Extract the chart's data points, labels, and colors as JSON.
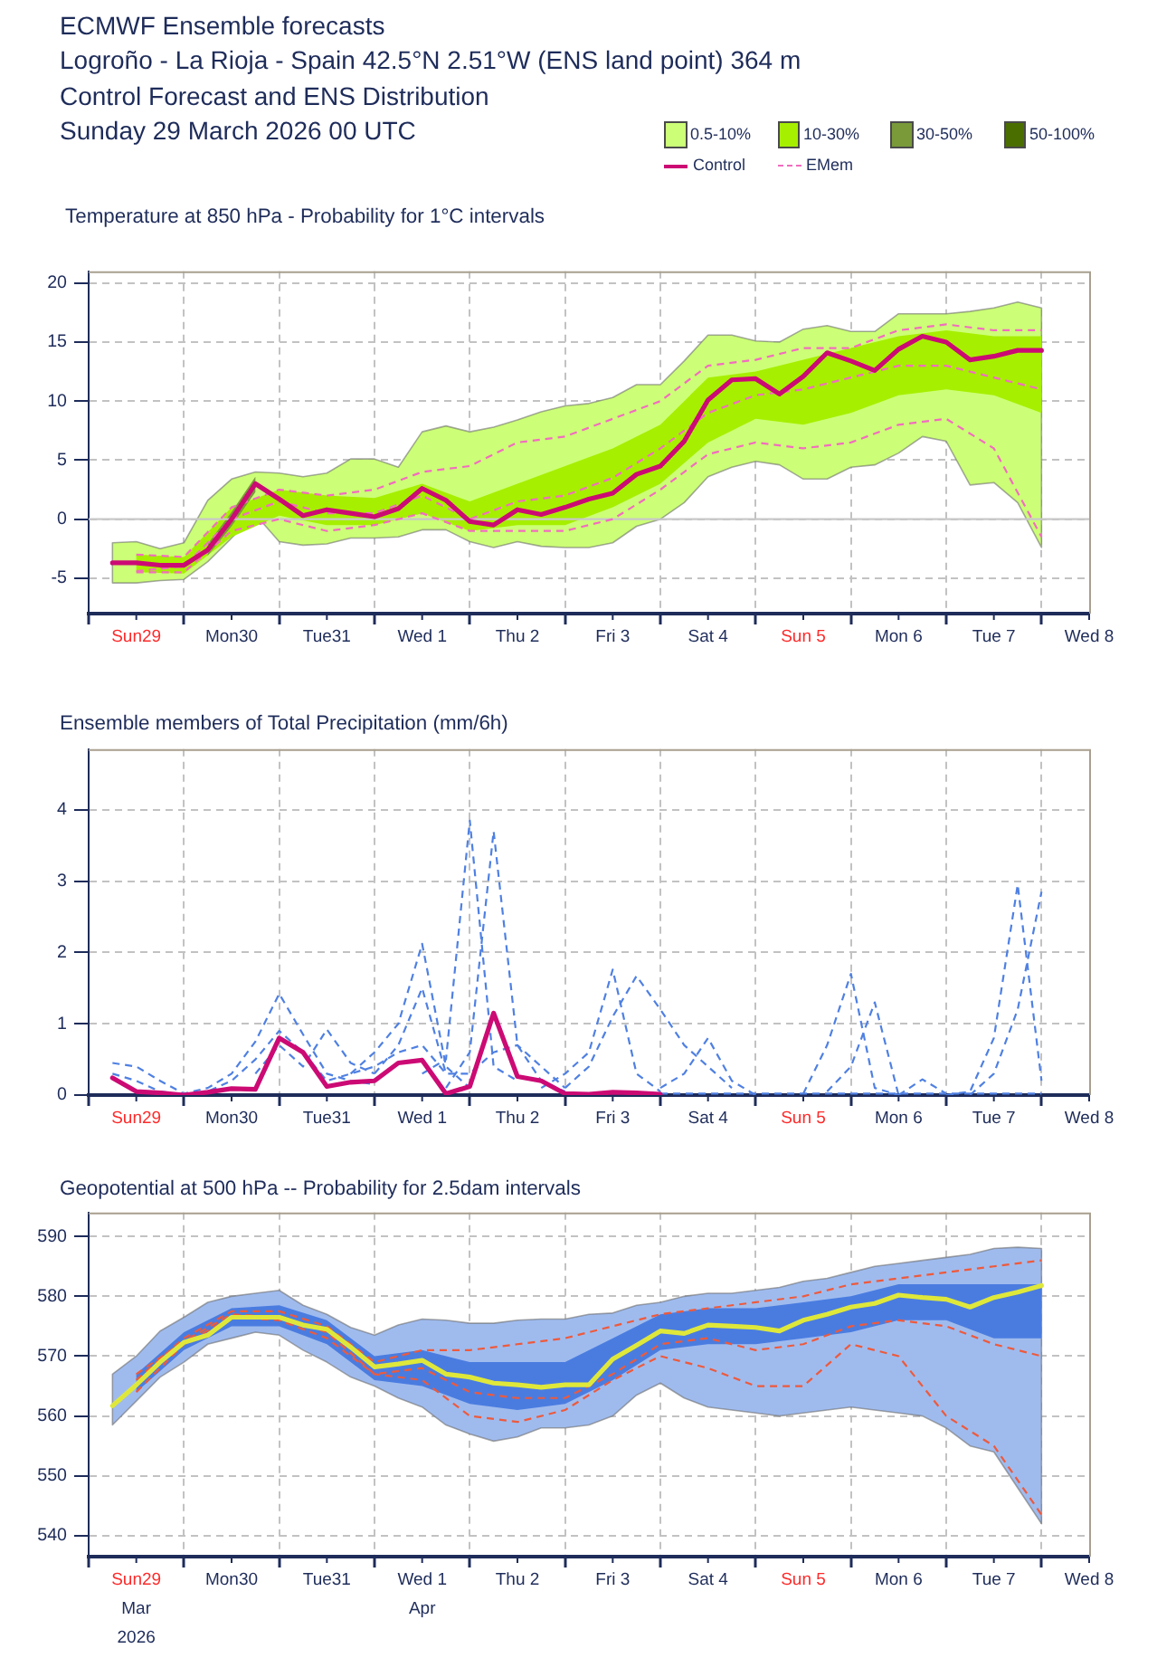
{
  "chart_data": [
    {
      "type": "line",
      "title": "Temperature at 850 hPa - Probability for 1°C intervals",
      "annotations": [
        "ECMWF Ensemble forecasts",
        "Logroño - La Rioja - Spain 42.5°N 2.51°W (ENS land point) 364 m",
        "Control Forecast and ENS Distribution",
        "Sunday 29 March 2026 00 UTC"
      ],
      "x": [
        "2026-03-29T06:00",
        "2026-03-29T12:00",
        "2026-03-29T18:00",
        "2026-03-30T00:00",
        "2026-03-30T06:00",
        "2026-03-30T12:00",
        "2026-03-30T18:00",
        "2026-03-31T00:00",
        "2026-03-31T06:00",
        "2026-03-31T12:00",
        "2026-03-31T18:00",
        "2026-04-01T00:00",
        "2026-04-01T06:00",
        "2026-04-01T12:00",
        "2026-04-01T18:00",
        "2026-04-02T00:00",
        "2026-04-02T06:00",
        "2026-04-02T12:00",
        "2026-04-02T18:00",
        "2026-04-03T00:00",
        "2026-04-03T06:00",
        "2026-04-03T12:00",
        "2026-04-03T18:00",
        "2026-04-04T00:00",
        "2026-04-04T06:00",
        "2026-04-04T12:00",
        "2026-04-04T18:00",
        "2026-04-05T00:00",
        "2026-04-05T06:00",
        "2026-04-05T12:00",
        "2026-04-05T18:00",
        "2026-04-06T00:00",
        "2026-04-06T06:00",
        "2026-04-06T12:00",
        "2026-04-06T18:00",
        "2026-04-07T00:00",
        "2026-04-07T06:00",
        "2026-04-07T12:00",
        "2026-04-07T18:00",
        "2026-04-08T00:00"
      ],
      "xlim": [
        "2026-03-29T00:00",
        "2026-04-08T12:00"
      ],
      "xticks": [
        {
          "value": "2026-03-29T00:00",
          "label": null
        },
        {
          "value": "2026-03-29T12:00",
          "label": "Sun29"
        },
        {
          "value": "2026-03-30T00:00",
          "label": null
        },
        {
          "value": "2026-03-30T12:00",
          "label": "Mon30"
        },
        {
          "value": "2026-03-31T00:00",
          "label": null
        },
        {
          "value": "2026-03-31T12:00",
          "label": "Tue31"
        },
        {
          "value": "2026-04-01T00:00",
          "label": null
        },
        {
          "value": "2026-04-01T12:00",
          "label": "Wed 1"
        },
        {
          "value": "2026-04-02T00:00",
          "label": null
        },
        {
          "value": "2026-04-02T12:00",
          "label": "Thu 2"
        },
        {
          "value": "2026-04-03T00:00",
          "label": null
        },
        {
          "value": "2026-04-03T12:00",
          "label": "Fri 3"
        },
        {
          "value": "2026-04-04T00:00",
          "label": null
        },
        {
          "value": "2026-04-04T12:00",
          "label": "Sat 4"
        },
        {
          "value": "2026-04-05T00:00",
          "label": null
        },
        {
          "value": "2026-04-05T12:00",
          "label": "Sun 5"
        },
        {
          "value": "2026-04-06T00:00",
          "label": null
        },
        {
          "value": "2026-04-06T12:00",
          "label": "Mon 6"
        },
        {
          "value": "2026-04-07T00:00",
          "label": null
        },
        {
          "value": "2026-04-07T12:00",
          "label": "Tue 7"
        },
        {
          "value": "2026-04-08T00:00",
          "label": null
        },
        {
          "value": "2026-04-08T12:00",
          "label": "Wed 8"
        }
      ],
      "ylim": [
        -8,
        21
      ],
      "yticks": [
        -5,
        0,
        5,
        10,
        15,
        20
      ],
      "grid": true,
      "legend": "top right",
      "ref_lines": [
        {
          "axis": "y",
          "value": 0,
          "color": "#c8c8c8"
        }
      ],
      "series": [
        {
          "name": "0.5-10%",
          "type": "area",
          "color": "#ccff77",
          "values": [
            null,
            null,
            null,
            null,
            null,
            null,
            null,
            null,
            null,
            null,
            null,
            null,
            null,
            null,
            null,
            null,
            null,
            null,
            null,
            null,
            null,
            null,
            null,
            null,
            null,
            null,
            null,
            null,
            null,
            null,
            null,
            null,
            null,
            null,
            null,
            null,
            null,
            null,
            null,
            null
          ],
          "lower": [
            -5.4,
            -5.4,
            -5.2,
            -5.1,
            -3.6,
            -1.6,
            0.4,
            -1.9,
            -2.2,
            -2.1,
            -1.6,
            -1.6,
            -1.5,
            -0.9,
            -0.9,
            -1.9,
            -2.4,
            -1.9,
            -2.3,
            -2.4,
            -2.4,
            -2.0,
            -0.6,
            0.0,
            1.4,
            3.6,
            4.4,
            4.9,
            4.6,
            3.4,
            3.4,
            4.4,
            4.6,
            5.6,
            7.0,
            6.6,
            2.9,
            3.1,
            1.4,
            -2.4
          ],
          "upper": [
            -2.0,
            -1.9,
            -2.5,
            -2.0,
            1.6,
            3.4,
            4.0,
            3.9,
            3.6,
            3.9,
            5.1,
            5.1,
            4.4,
            7.4,
            7.9,
            7.4,
            7.8,
            8.4,
            9.1,
            9.6,
            9.8,
            10.3,
            11.4,
            11.4,
            13.4,
            15.6,
            15.6,
            15.1,
            15.0,
            16.1,
            16.4,
            15.9,
            15.9,
            17.4,
            17.4,
            17.4,
            17.6,
            17.9,
            18.4,
            17.9
          ]
        },
        {
          "name": "10-30%",
          "type": "area",
          "color": "#a6ef00",
          "x": [
            "2026-03-29T12:00",
            "2026-03-30T00:00",
            "2026-03-30T12:00",
            "2026-03-31T00:00",
            "2026-03-31T12:00",
            "2026-04-01T00:00",
            "2026-04-01T12:00",
            "2026-04-02T00:00",
            "2026-04-02T12:00",
            "2026-04-03T00:00",
            "2026-04-03T12:00",
            "2026-04-04T00:00",
            "2026-04-04T12:00",
            "2026-04-05T00:00",
            "2026-04-05T12:00",
            "2026-04-06T00:00",
            "2026-04-06T12:00",
            "2026-04-07T00:00",
            "2026-04-07T12:00",
            "2026-04-08T00:00"
          ],
          "values": [
            null,
            null,
            null,
            null,
            null,
            null,
            null,
            null,
            null,
            null,
            null,
            null,
            null,
            null,
            null,
            null,
            null,
            null,
            null,
            null
          ],
          "lower": [
            -4.5,
            -4.6,
            -1.5,
            0.3,
            -0.5,
            -0.5,
            0.5,
            -1.0,
            -0.5,
            -0.5,
            1.0,
            3.0,
            6.5,
            8.5,
            8.0,
            9.0,
            10.5,
            11.0,
            10.5,
            9.0
          ],
          "upper": [
            -3.0,
            -3.2,
            1.0,
            2.5,
            2.0,
            1.8,
            3.0,
            1.5,
            3.0,
            4.5,
            6.0,
            8.0,
            12.0,
            12.5,
            13.5,
            14.5,
            15.5,
            16.0,
            15.5,
            15.5
          ]
        },
        {
          "name": "30-50%",
          "type": "area",
          "color": "#7a9a3a",
          "x": [
            "2026-03-30T06:00",
            "2026-03-30T12:00",
            "2026-03-30T18:00"
          ],
          "values": [
            null,
            null,
            null
          ],
          "lower": [
            -3.1,
            -0.6,
            2.3
          ],
          "upper": [
            -2.1,
            0.6,
            3.6
          ]
        },
        {
          "name": "50-100%",
          "type": "area",
          "color": "#4b6e00",
          "values": [
            null,
            null,
            null,
            null,
            null,
            null,
            null,
            null,
            null,
            null,
            null,
            null,
            null,
            null,
            null,
            null,
            null,
            null,
            null,
            null,
            null,
            null,
            null,
            null,
            null,
            null,
            null,
            null,
            null,
            null,
            null,
            null,
            null,
            null,
            null,
            null,
            null,
            null,
            null,
            null
          ]
        },
        {
          "name": "Control",
          "color": "#cc0a74",
          "values": [
            -3.7,
            -3.7,
            -3.9,
            -3.9,
            -2.6,
            0.0,
            3.0,
            1.7,
            0.3,
            0.8,
            0.5,
            0.2,
            0.9,
            2.6,
            1.6,
            -0.2,
            -0.5,
            0.8,
            0.4,
            1.0,
            1.7,
            2.2,
            3.8,
            4.5,
            6.6,
            10.1,
            11.8,
            11.9,
            10.6,
            12.1,
            14.1,
            13.4,
            12.6,
            14.4,
            15.5,
            15.0,
            13.5,
            13.8,
            14.3,
            14.3
          ]
        },
        {
          "name": "EMem",
          "color": "#f26cbf",
          "line_style": "dashed",
          "x": [
            "2026-03-29T12:00",
            "2026-03-30T00:00",
            "2026-03-30T12:00",
            "2026-03-31T00:00",
            "2026-03-31T12:00",
            "2026-04-01T00:00",
            "2026-04-01T12:00",
            "2026-04-02T00:00",
            "2026-04-02T12:00",
            "2026-04-03T00:00",
            "2026-04-03T12:00",
            "2026-04-04T00:00",
            "2026-04-04T12:00",
            "2026-04-05T00:00",
            "2026-04-05T12:00",
            "2026-04-06T00:00",
            "2026-04-06T12:00",
            "2026-04-07T00:00",
            "2026-04-07T12:00",
            "2026-04-08T00:00"
          ],
          "values": [
            -4.4,
            -4.0,
            0.0,
            1.5,
            0.5,
            0.5,
            2.0,
            0.0,
            1.5,
            2.0,
            3.5,
            6.0,
            9.0,
            10.5,
            11.0,
            12.0,
            13.0,
            13.0,
            12.0,
            11.0
          ]
        },
        {
          "color": "#f26cbf",
          "line_style": "dashed",
          "x": [
            "2026-03-29T12:00",
            "2026-03-30T00:00",
            "2026-03-30T12:00",
            "2026-03-31T00:00",
            "2026-03-31T12:00",
            "2026-04-01T00:00",
            "2026-04-01T12:00",
            "2026-04-02T00:00",
            "2026-04-02T12:00",
            "2026-04-03T00:00",
            "2026-04-03T12:00",
            "2026-04-04T00:00",
            "2026-04-04T12:00",
            "2026-04-05T00:00",
            "2026-04-05T12:00",
            "2026-04-06T00:00",
            "2026-04-06T12:00",
            "2026-04-07T00:00",
            "2026-04-07T12:00",
            "2026-04-08T00:00"
          ],
          "values": [
            -3.0,
            -3.2,
            1.0,
            2.5,
            2.0,
            2.5,
            4.0,
            4.5,
            6.5,
            7.0,
            8.5,
            10.0,
            13.0,
            13.5,
            14.5,
            14.5,
            16.0,
            16.5,
            16.0,
            16.0
          ]
        },
        {
          "color": "#f26cbf",
          "line_style": "dashed",
          "x": [
            "2026-03-29T12:00",
            "2026-03-30T00:00",
            "2026-03-30T12:00",
            "2026-03-31T00:00",
            "2026-03-31T12:00",
            "2026-04-01T00:00",
            "2026-04-01T12:00",
            "2026-04-02T00:00",
            "2026-04-02T12:00",
            "2026-04-03T00:00",
            "2026-04-03T12:00",
            "2026-04-04T00:00",
            "2026-04-04T12:00",
            "2026-04-05T00:00",
            "2026-04-05T12:00",
            "2026-04-06T00:00",
            "2026-04-06T12:00",
            "2026-04-07T00:00",
            "2026-04-07T12:00",
            "2026-04-08T00:00"
          ],
          "values": [
            -4.5,
            -4.5,
            -1.0,
            0.0,
            -1.0,
            -0.5,
            0.5,
            -1.0,
            -1.0,
            -1.0,
            0.0,
            2.5,
            5.5,
            6.5,
            6.0,
            6.5,
            8.0,
            8.5,
            6.0,
            -1.5
          ]
        }
      ]
    },
    {
      "type": "line",
      "title": "Ensemble members of Total Precipitation (mm/6h)",
      "xlim": [
        "2026-03-29T00:00",
        "2026-04-08T12:00"
      ],
      "xticks": [
        {
          "value": "2026-03-29T00:00",
          "label": null
        },
        {
          "value": "2026-03-29T12:00",
          "label": "Sun29"
        },
        {
          "value": "2026-03-30T00:00",
          "label": null
        },
        {
          "value": "2026-03-30T12:00",
          "label": "Mon30"
        },
        {
          "value": "2026-03-31T00:00",
          "label": null
        },
        {
          "value": "2026-03-31T12:00",
          "label": "Tue31"
        },
        {
          "value": "2026-04-01T00:00",
          "label": null
        },
        {
          "value": "2026-04-01T12:00",
          "label": "Wed 1"
        },
        {
          "value": "2026-04-02T00:00",
          "label": null
        },
        {
          "value": "2026-04-02T12:00",
          "label": "Thu 2"
        },
        {
          "value": "2026-04-03T00:00",
          "label": null
        },
        {
          "value": "2026-04-03T12:00",
          "label": "Fri 3"
        },
        {
          "value": "2026-04-04T00:00",
          "label": null
        },
        {
          "value": "2026-04-04T12:00",
          "label": "Sat 4"
        },
        {
          "value": "2026-04-05T00:00",
          "label": null
        },
        {
          "value": "2026-04-05T12:00",
          "label": "Sun 5"
        },
        {
          "value": "2026-04-06T00:00",
          "label": null
        },
        {
          "value": "2026-04-06T12:00",
          "label": "Mon 6"
        },
        {
          "value": "2026-04-07T00:00",
          "label": null
        },
        {
          "value": "2026-04-07T12:00",
          "label": "Tue 7"
        },
        {
          "value": "2026-04-08T00:00",
          "label": null
        },
        {
          "value": "2026-04-08T12:00",
          "label": "Wed 8"
        }
      ],
      "ylim": [
        0,
        4.85
      ],
      "yticks": [
        0,
        1,
        2,
        3,
        4
      ],
      "grid": true,
      "series": [
        {
          "color": "#4f80e2",
          "line_style": "dashed",
          "x": [
            "2026-03-29T06:00",
            "2026-03-29T12:00",
            "2026-03-29T18:00",
            "2026-03-30T00:00",
            "2026-03-30T06:00",
            "2026-03-30T12:00",
            "2026-03-30T18:00",
            "2026-03-31T00:00",
            "2026-03-31T06:00",
            "2026-03-31T12:00",
            "2026-03-31T18:00",
            "2026-04-01T00:00"
          ],
          "values": [
            0.45,
            0.4,
            0.2,
            0.02,
            0.1,
            0.3,
            0.75,
            1.42,
            0.85,
            0.3,
            0.2,
            0.15
          ]
        },
        {
          "color": "#4f80e2",
          "line_style": "dashed",
          "x": [
            "2026-03-30T18:00",
            "2026-03-31T00:00",
            "2026-03-31T06:00",
            "2026-03-31T12:00",
            "2026-03-31T18:00",
            "2026-04-01T00:00"
          ],
          "values": [
            0.3,
            0.7,
            0.4,
            0.92,
            0.45,
            0.3
          ]
        },
        {
          "color": "#4f80e2",
          "line_style": "dashed",
          "x": [
            "2026-03-29T06:00",
            "2026-03-29T12:00",
            "2026-03-29T18:00",
            "2026-03-30T00:00",
            "2026-03-30T06:00",
            "2026-03-30T12:00",
            "2026-03-30T18:00",
            "2026-03-31T00:00",
            "2026-03-31T06:00",
            "2026-03-31T12:00",
            "2026-03-31T18:00",
            "2026-04-01T00:00",
            "2026-04-01T06:00",
            "2026-04-01T12:00",
            "2026-04-01T18:00",
            "2026-04-02T00:00",
            "2026-04-02T06:00",
            "2026-04-02T12:00",
            "2026-04-02T18:00",
            "2026-04-03T00:00"
          ],
          "values": [
            0.3,
            0.2,
            0.05,
            0.0,
            0.05,
            0.2,
            0.5,
            0.9,
            0.6,
            0.2,
            0.3,
            0.4,
            0.6,
            0.7,
            0.3,
            0.3,
            0.6,
            0.7,
            0.4,
            0.1
          ]
        },
        {
          "color": "#4f80e2",
          "line_style": "dashed",
          "x": [
            "2026-03-31T18:00",
            "2026-04-01T00:00",
            "2026-04-01T06:00",
            "2026-04-01T12:00",
            "2026-04-01T18:00",
            "2026-04-02T00:00"
          ],
          "values": [
            0.3,
            0.6,
            1.0,
            2.12,
            0.4,
            0.1
          ]
        },
        {
          "color": "#4f80e2",
          "line_style": "dashed",
          "x": [
            "2026-04-01T00:00",
            "2026-04-01T06:00",
            "2026-04-01T12:00",
            "2026-04-01T18:00"
          ],
          "values": [
            0.3,
            0.7,
            1.5,
            0.3
          ]
        },
        {
          "color": "#4f80e2",
          "line_style": "dashed",
          "x": [
            "2026-04-01T12:00",
            "2026-04-01T18:00",
            "2026-04-02T00:00",
            "2026-04-02T06:00",
            "2026-04-02T12:00"
          ],
          "values": [
            0.3,
            0.5,
            3.85,
            0.4,
            0.2
          ]
        },
        {
          "color": "#4f80e2",
          "line_style": "dashed",
          "x": [
            "2026-04-01T18:00",
            "2026-04-02T00:00",
            "2026-04-02T06:00",
            "2026-04-02T12:00",
            "2026-04-02T18:00",
            "2026-04-03T00:00"
          ],
          "values": [
            0.1,
            0.6,
            3.7,
            0.7,
            0.2,
            0.05
          ]
        },
        {
          "color": "#4f80e2",
          "line_style": "dashed",
          "x": [
            "2026-04-02T18:00",
            "2026-04-03T00:00",
            "2026-04-03T06:00",
            "2026-04-03T12:00",
            "2026-04-03T18:00",
            "2026-04-04T00:00"
          ],
          "values": [
            0.1,
            0.3,
            0.6,
            1.76,
            0.3,
            0.05
          ]
        },
        {
          "color": "#4f80e2",
          "line_style": "dashed",
          "x": [
            "2026-04-03T00:00",
            "2026-04-03T06:00",
            "2026-04-03T12:00",
            "2026-04-03T18:00",
            "2026-04-04T00:00",
            "2026-04-04T06:00",
            "2026-04-04T12:00",
            "2026-04-04T18:00"
          ],
          "values": [
            0.1,
            0.4,
            1.1,
            1.67,
            1.2,
            0.7,
            0.4,
            0.1
          ]
        },
        {
          "color": "#4f80e2",
          "line_style": "dashed",
          "x": [
            "2026-04-04T00:00",
            "2026-04-04T06:00",
            "2026-04-04T12:00",
            "2026-04-04T18:00",
            "2026-04-05T00:00"
          ],
          "values": [
            0.1,
            0.3,
            0.8,
            0.2,
            0.0
          ]
        },
        {
          "color": "#4f80e2",
          "line_style": "dashed",
          "x": [
            "2026-04-04T00:00",
            "2026-04-08T00:00"
          ],
          "values": [
            0.02,
            0.02
          ]
        },
        {
          "color": "#4f80e2",
          "line_style": "dashed",
          "x": [
            "2026-04-05T12:00",
            "2026-04-05T18:00",
            "2026-04-06T00:00",
            "2026-04-06T06:00",
            "2026-04-06T12:00"
          ],
          "values": [
            0.02,
            0.7,
            1.7,
            0.1,
            0.0
          ]
        },
        {
          "color": "#4f80e2",
          "line_style": "dashed",
          "x": [
            "2026-04-05T18:00",
            "2026-04-06T00:00",
            "2026-04-06T06:00",
            "2026-04-06T12:00"
          ],
          "values": [
            0.05,
            0.4,
            1.3,
            0.0
          ]
        },
        {
          "color": "#4f80e2",
          "line_style": "dashed",
          "x": [
            "2026-04-06T12:00",
            "2026-04-06T18:00",
            "2026-04-07T00:00"
          ],
          "values": [
            0.0,
            0.22,
            0.02
          ]
        },
        {
          "color": "#4f80e2",
          "line_style": "dashed",
          "x": [
            "2026-04-07T00:00",
            "2026-04-07T06:00",
            "2026-04-07T12:00",
            "2026-04-07T18:00",
            "2026-04-08T00:00"
          ],
          "values": [
            0.0,
            0.05,
            0.8,
            2.95,
            0.2
          ]
        },
        {
          "color": "#4f80e2",
          "line_style": "dashed",
          "x": [
            "2026-04-07T06:00",
            "2026-04-07T12:00",
            "2026-04-07T18:00",
            "2026-04-08T00:00"
          ],
          "values": [
            0.0,
            0.3,
            1.2,
            2.85
          ]
        },
        {
          "color": "#cc0a74",
          "x": [
            "2026-03-29T06:00",
            "2026-03-29T12:00",
            "2026-03-29T18:00",
            "2026-03-30T00:00",
            "2026-03-30T06:00",
            "2026-03-30T12:00",
            "2026-03-30T18:00",
            "2026-03-31T00:00",
            "2026-03-31T06:00",
            "2026-03-31T12:00",
            "2026-03-31T18:00",
            "2026-04-01T00:00",
            "2026-04-01T06:00",
            "2026-04-01T12:00",
            "2026-04-01T18:00",
            "2026-04-02T00:00",
            "2026-04-02T06:00",
            "2026-04-02T12:00",
            "2026-04-02T18:00",
            "2026-04-03T00:00",
            "2026-04-03T06:00",
            "2026-04-03T12:00",
            "2026-04-03T18:00",
            "2026-04-04T00:00"
          ],
          "values": [
            0.24,
            0.05,
            0.03,
            0.0,
            0.04,
            0.09,
            0.08,
            0.8,
            0.6,
            0.12,
            0.18,
            0.2,
            0.45,
            0.49,
            0.02,
            0.12,
            1.15,
            0.26,
            0.2,
            0.02,
            0.01,
            0.04,
            0.03,
            0.01
          ]
        }
      ]
    },
    {
      "type": "line",
      "title": "Geopotential at 500 hPa -- Probability for 2.5dam intervals",
      "x": [
        "2026-03-29T06:00",
        "2026-03-29T12:00",
        "2026-03-29T18:00",
        "2026-03-30T00:00",
        "2026-03-30T06:00",
        "2026-03-30T12:00",
        "2026-03-30T18:00",
        "2026-03-31T00:00",
        "2026-03-31T06:00",
        "2026-03-31T12:00",
        "2026-03-31T18:00",
        "2026-04-01T00:00",
        "2026-04-01T06:00",
        "2026-04-01T12:00",
        "2026-04-01T18:00",
        "2026-04-02T00:00",
        "2026-04-02T06:00",
        "2026-04-02T12:00",
        "2026-04-02T18:00",
        "2026-04-03T00:00",
        "2026-04-03T06:00",
        "2026-04-03T12:00",
        "2026-04-03T18:00",
        "2026-04-04T00:00",
        "2026-04-04T06:00",
        "2026-04-04T12:00",
        "2026-04-04T18:00",
        "2026-04-05T00:00",
        "2026-04-05T06:00",
        "2026-04-05T12:00",
        "2026-04-05T18:00",
        "2026-04-06T00:00",
        "2026-04-06T06:00",
        "2026-04-06T12:00",
        "2026-04-06T18:00",
        "2026-04-07T00:00",
        "2026-04-07T06:00",
        "2026-04-07T12:00",
        "2026-04-07T18:00",
        "2026-04-08T00:00"
      ],
      "xlim": [
        "2026-03-29T00:00",
        "2026-04-08T12:00"
      ],
      "xticks": [
        {
          "value": "2026-03-29T00:00",
          "label": null
        },
        {
          "value": "2026-03-29T12:00",
          "label": "Sun29\nMar\n2026"
        },
        {
          "value": "2026-03-30T00:00",
          "label": null
        },
        {
          "value": "2026-03-30T12:00",
          "label": "Mon30"
        },
        {
          "value": "2026-03-31T00:00",
          "label": null
        },
        {
          "value": "2026-03-31T12:00",
          "label": "Tue31"
        },
        {
          "value": "2026-04-01T00:00",
          "label": null
        },
        {
          "value": "2026-04-01T12:00",
          "label": "Wed 1\nApr"
        },
        {
          "value": "2026-04-02T00:00",
          "label": null
        },
        {
          "value": "2026-04-02T12:00",
          "label": "Thu 2"
        },
        {
          "value": "2026-04-03T00:00",
          "label": null
        },
        {
          "value": "2026-04-03T12:00",
          "label": "Fri 3"
        },
        {
          "value": "2026-04-04T00:00",
          "label": null
        },
        {
          "value": "2026-04-04T12:00",
          "label": "Sat 4"
        },
        {
          "value": "2026-04-05T00:00",
          "label": null
        },
        {
          "value": "2026-04-05T12:00",
          "label": "Sun 5"
        },
        {
          "value": "2026-04-06T00:00",
          "label": null
        },
        {
          "value": "2026-04-06T12:00",
          "label": "Mon 6"
        },
        {
          "value": "2026-04-07T00:00",
          "label": null
        },
        {
          "value": "2026-04-07T12:00",
          "label": "Tue 7"
        },
        {
          "value": "2026-04-08T00:00",
          "label": null
        },
        {
          "value": "2026-04-08T12:00",
          "label": "Wed 8"
        }
      ],
      "ylim": [
        536.5,
        594
      ],
      "yticks": [
        540,
        550,
        560,
        570,
        580,
        590
      ],
      "grid": true,
      "series": [
        {
          "type": "area",
          "color": "#9fbbee",
          "values": [
            null,
            null,
            null,
            null,
            null,
            null,
            null,
            null,
            null,
            null,
            null,
            null,
            null,
            null,
            null,
            null,
            null,
            null,
            null,
            null,
            null,
            null,
            null,
            null,
            null,
            null,
            null,
            null,
            null,
            null,
            null,
            null,
            null,
            null,
            null,
            null,
            null,
            null,
            null,
            null
          ],
          "lower": [
            558.5,
            562.5,
            566.5,
            569.0,
            572.0,
            573.0,
            574.0,
            573.5,
            571.0,
            569.0,
            566.5,
            565.0,
            563.0,
            561.5,
            558.5,
            557.0,
            555.8,
            556.5,
            558.0,
            558.0,
            558.5,
            560.0,
            563.5,
            565.5,
            563.0,
            561.5,
            561.0,
            560.5,
            560.0,
            560.5,
            561.0,
            561.5,
            561.0,
            560.5,
            560.0,
            558.0,
            555.0,
            554.0,
            548.0,
            542.0
          ],
          "upper": [
            567.0,
            570.0,
            574.2,
            576.5,
            579.0,
            580.0,
            580.5,
            581.0,
            578.5,
            577.0,
            574.8,
            573.5,
            575.2,
            576.2,
            576.0,
            575.5,
            575.5,
            576.0,
            576.2,
            576.2,
            577.0,
            577.2,
            578.5,
            579.0,
            580.0,
            580.5,
            580.5,
            581.0,
            581.5,
            582.5,
            583.0,
            584.0,
            585.0,
            585.5,
            586.0,
            586.5,
            587.0,
            588.0,
            588.2,
            588.0
          ]
        },
        {
          "type": "area",
          "color": "#4a7ce0",
          "x": [
            "2026-03-29T12:00",
            "2026-03-30T00:00",
            "2026-03-30T12:00",
            "2026-03-31T00:00",
            "2026-03-31T12:00",
            "2026-04-01T00:00",
            "2026-04-01T12:00",
            "2026-04-02T00:00",
            "2026-04-02T12:00",
            "2026-04-03T00:00",
            "2026-04-03T12:00",
            "2026-04-04T00:00",
            "2026-04-04T12:00",
            "2026-04-05T00:00",
            "2026-04-05T12:00",
            "2026-04-06T00:00",
            "2026-04-06T12:00",
            "2026-04-07T00:00",
            "2026-04-07T12:00",
            "2026-04-08T00:00"
          ],
          "values": [
            null,
            null,
            null,
            null,
            null,
            null,
            null,
            null,
            null,
            null,
            null,
            null,
            null,
            null,
            null,
            null,
            null,
            null,
            null,
            null
          ],
          "lower": [
            564,
            571,
            575,
            575,
            572,
            566,
            565,
            562,
            561,
            562,
            566,
            571,
            572,
            572,
            573,
            574,
            576,
            576,
            573,
            573
          ],
          "upper": [
            567,
            574,
            578,
            578.5,
            576,
            570,
            571,
            569,
            569,
            569,
            573,
            577,
            578,
            578,
            579,
            580,
            582,
            582,
            582,
            582
          ]
        },
        {
          "color": "#ee5a3c",
          "line_style": "dashed",
          "x": [
            "2026-03-29T12:00",
            "2026-03-30T00:00",
            "2026-03-30T12:00",
            "2026-03-31T00:00",
            "2026-03-31T12:00",
            "2026-04-01T00:00",
            "2026-04-01T12:00",
            "2026-04-02T00:00",
            "2026-04-02T12:00",
            "2026-04-03T00:00",
            "2026-04-03T12:00",
            "2026-04-04T00:00",
            "2026-04-04T12:00",
            "2026-04-05T00:00",
            "2026-04-05T12:00",
            "2026-04-06T00:00",
            "2026-04-06T12:00",
            "2026-04-07T00:00",
            "2026-04-07T12:00",
            "2026-04-08T00:00"
          ],
          "values": [
            564,
            572,
            576.5,
            576,
            573,
            567,
            566,
            560,
            559,
            561,
            566,
            570,
            568,
            565,
            565,
            572,
            570,
            560,
            555,
            543.5
          ]
        },
        {
          "color": "#ee5a3c",
          "line_style": "dashed",
          "x": [
            "2026-03-29T12:00",
            "2026-03-30T00:00",
            "2026-03-30T12:00",
            "2026-03-31T00:00",
            "2026-03-31T12:00",
            "2026-04-01T00:00",
            "2026-04-01T12:00",
            "2026-04-02T00:00",
            "2026-04-02T12:00",
            "2026-04-03T00:00",
            "2026-04-03T12:00",
            "2026-04-04T00:00",
            "2026-04-04T12:00",
            "2026-04-05T00:00",
            "2026-04-05T12:00",
            "2026-04-06T00:00",
            "2026-04-06T12:00",
            "2026-04-07T00:00",
            "2026-04-07T12:00",
            "2026-04-08T00:00"
          ],
          "values": [
            566,
            573,
            577.5,
            577.5,
            575,
            569,
            571,
            571,
            572,
            573,
            575,
            577,
            578,
            579,
            580,
            582,
            583,
            584,
            585,
            586
          ]
        },
        {
          "color": "#ee5a3c",
          "line_style": "dashed",
          "x": [
            "2026-03-29T12:00",
            "2026-03-30T00:00",
            "2026-03-30T12:00",
            "2026-03-31T00:00",
            "2026-03-31T12:00",
            "2026-04-01T00:00",
            "2026-04-01T12:00",
            "2026-04-02T00:00",
            "2026-04-02T12:00",
            "2026-04-03T00:00",
            "2026-04-03T12:00",
            "2026-04-04T00:00",
            "2026-04-04T12:00",
            "2026-04-05T00:00",
            "2026-04-05T12:00",
            "2026-04-06T00:00",
            "2026-04-06T12:00",
            "2026-04-07T00:00",
            "2026-04-07T12:00",
            "2026-04-08T00:00"
          ],
          "values": [
            567,
            572.5,
            577,
            576.5,
            574,
            567,
            568,
            564,
            563,
            563,
            567,
            572,
            573,
            571,
            572,
            575,
            576,
            575,
            572,
            570
          ]
        },
        {
          "color": "#dfe83a",
          "values": [
            561.7,
            565.2,
            569.0,
            572.3,
            573.5,
            576.5,
            576.5,
            576.5,
            575.2,
            574.5,
            571.5,
            568.2,
            568.7,
            569.3,
            567.0,
            566.5,
            565.5,
            565.2,
            564.8,
            565.2,
            565.2,
            569.5,
            571.8,
            574.2,
            573.8,
            575.2,
            575.0,
            574.8,
            574.2,
            576.0,
            577.0,
            578.2,
            578.8,
            580.2,
            579.8,
            579.5,
            578.2,
            579.8,
            580.7,
            581.8
          ]
        }
      ]
    }
  ]
}
